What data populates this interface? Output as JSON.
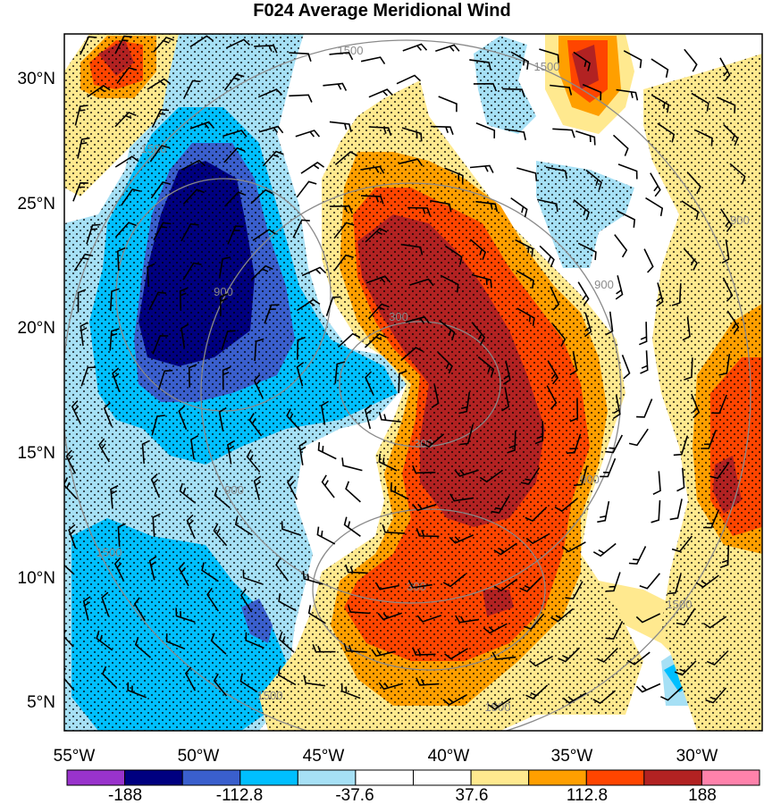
{
  "title": "F024 Average Meridional Wind",
  "lat_labels": [
    "30°N",
    "25°N",
    "20°N",
    "15°N",
    "10°N",
    "5°N"
  ],
  "lon_labels": [
    "55°W",
    "50°W",
    "45°W",
    "40°W",
    "35°W",
    "30°W"
  ],
  "colorbar": {
    "colors": [
      "#9933cc",
      "#000080",
      "#3a5fcd",
      "#00bfff",
      "#a6e0f5",
      "#ffffff",
      "#ffffff",
      "#ffe98f",
      "#ff9f00",
      "#ff4500",
      "#b22222",
      "#ff82ab"
    ],
    "labels": [
      "-188",
      "-112.8",
      "-37.6",
      "37.6",
      "112.8",
      "188"
    ]
  },
  "height_contours": {
    "labels": [
      "1500",
      "1500",
      "1500",
      "900",
      "900",
      "900",
      "900",
      "300",
      "300",
      "300",
      "900",
      "1500",
      "1500",
      "1500",
      "1500"
    ]
  }
}
